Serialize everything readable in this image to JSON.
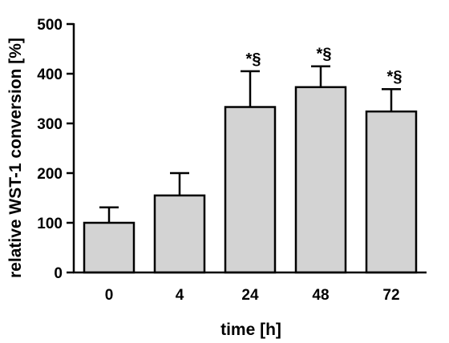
{
  "chart_data": {
    "type": "bar",
    "title": "",
    "xlabel": "time [h]",
    "ylabel": "relative WST-1 conversion [%]",
    "ylim": [
      0,
      500
    ],
    "yticks": [
      0,
      100,
      200,
      300,
      400,
      500
    ],
    "categories": [
      "0",
      "4",
      "24",
      "48",
      "72"
    ],
    "values": [
      100,
      155,
      333,
      373,
      324
    ],
    "errors": [
      31,
      45,
      72,
      42,
      45
    ],
    "annotations": [
      "",
      "",
      "*§",
      "*§",
      "*§"
    ],
    "bar_color": "#d3d3d3",
    "grid": false,
    "legend": "none"
  }
}
